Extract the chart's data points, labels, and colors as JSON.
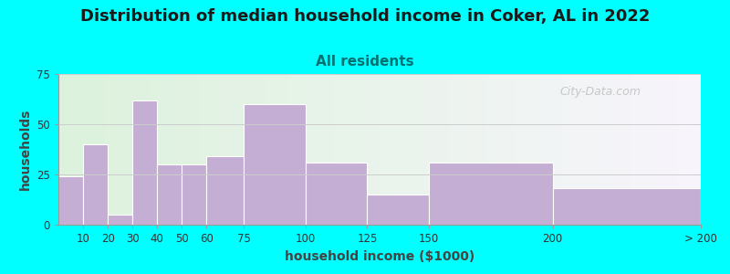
{
  "title": "Distribution of median household income in Coker, AL in 2022",
  "subtitle": "All residents",
  "xlabel": "household income ($1000)",
  "ylabel": "households",
  "background_outer": "#00FFFF",
  "bar_color": "#C4AED4",
  "bar_edgecolor": "#FFFFFF",
  "categories": [
    "10",
    "20",
    "30",
    "40",
    "50",
    "60",
    "75",
    "100",
    "125",
    "150",
    "200",
    "> 200"
  ],
  "values": [
    24,
    40,
    5,
    62,
    30,
    30,
    34,
    60,
    31,
    15,
    31,
    18
  ],
  "ylim": [
    0,
    75
  ],
  "yticks": [
    0,
    25,
    50,
    75
  ],
  "title_fontsize": 13,
  "subtitle_fontsize": 11,
  "title_color": "#1a1a1a",
  "subtitle_color": "#007070",
  "axis_label_fontsize": 10,
  "tick_fontsize": 8.5,
  "grid_color": "#CCCCCC",
  "watermark": "City-Data.com",
  "watermark_color": "#AAAAAA"
}
